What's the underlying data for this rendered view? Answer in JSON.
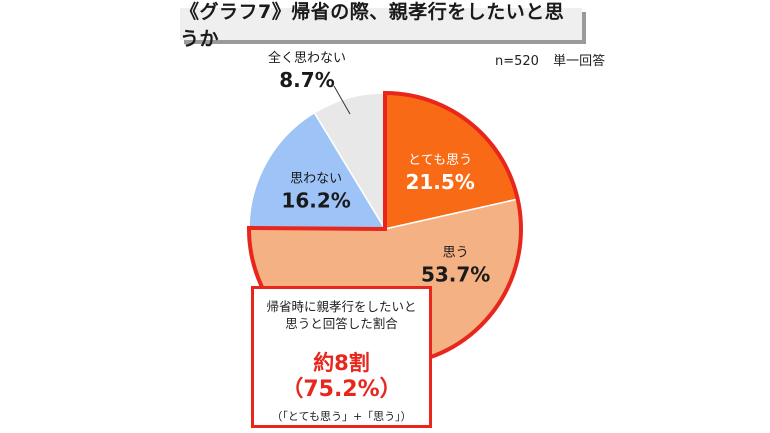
{
  "title": "《グラフ7》帰省の際、親孝行をしたいと思うか",
  "meta": {
    "n": "n=520",
    "answer_type": "単一回答"
  },
  "chart_data": {
    "type": "pie",
    "start": "12 o'clock, clockwise",
    "slices": [
      {
        "label": "とても思う",
        "value": 21.5,
        "display": "21.5%",
        "color": "#f96a16",
        "text_color": "#ffffff",
        "highlighted": true
      },
      {
        "label": "思う",
        "value": 53.7,
        "display": "53.7%",
        "color": "#f4b183",
        "text_color": "#1a1a1a",
        "highlighted": true
      },
      {
        "label": "思わない",
        "value": 16.2,
        "display": "16.2%",
        "color": "#9dc3f7",
        "text_color": "#1a1a1a",
        "highlighted": false
      },
      {
        "label": "全く思わない",
        "value": 8.7,
        "display": "8.7%",
        "color": "#e8e8e8",
        "text_color": "#1a1a1a",
        "highlighted": false
      }
    ],
    "highlight_color": "#e8261c"
  },
  "callout": {
    "line1": "帰省時に親孝行をしたいと",
    "line2": "思うと回答した割合",
    "big1": "約8割",
    "big2": "（75.2%）",
    "sub": "（「とても思う」+「思う」）"
  }
}
